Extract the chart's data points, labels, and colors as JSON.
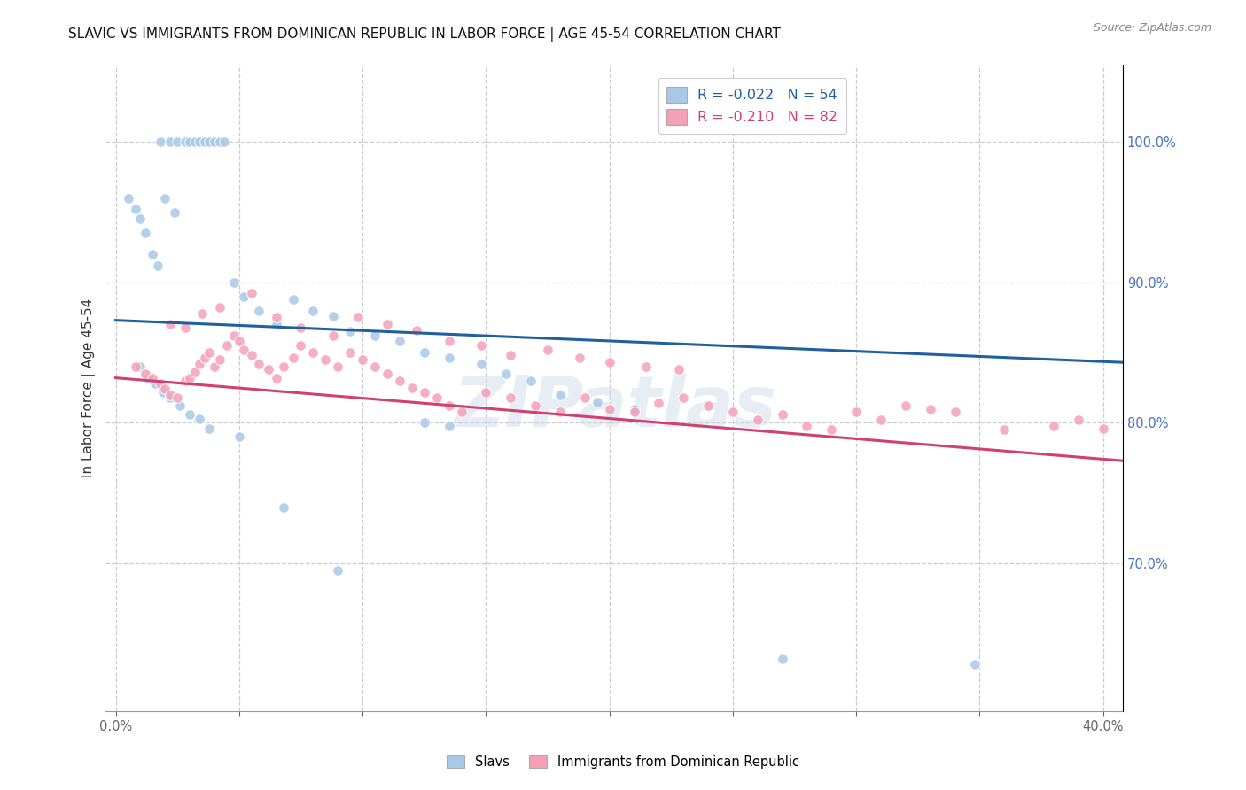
{
  "title": "SLAVIC VS IMMIGRANTS FROM DOMINICAN REPUBLIC IN LABOR FORCE | AGE 45-54 CORRELATION CHART",
  "source": "Source: ZipAtlas.com",
  "ylabel": "In Labor Force | Age 45-54",
  "legend_labels": [
    "Slavs",
    "Immigrants from Dominican Republic"
  ],
  "r_values": [
    -0.022,
    -0.21
  ],
  "n_values": [
    54,
    82
  ],
  "blue_color": "#a8c8e8",
  "pink_color": "#f4a0b8",
  "blue_line_color": "#2060a0",
  "pink_line_color": "#d04070",
  "xlim": [
    -0.004,
    0.408
  ],
  "ylim": [
    0.595,
    1.055
  ],
  "y_ticks_right": [
    0.7,
    0.8,
    0.9,
    1.0
  ],
  "y_tick_labels_right": [
    "70.0%",
    "80.0%",
    "90.0%",
    "100.0%"
  ],
  "x_tick_vals": [
    0.0,
    0.05,
    0.1,
    0.15,
    0.2,
    0.25,
    0.3,
    0.35,
    0.4
  ],
  "x_tick_labels": [
    "0.0%",
    "",
    "",
    "",
    "",
    "",
    "",
    "",
    "40.0%"
  ],
  "watermark": "ZIPatlas",
  "blue_trend": [
    0.873,
    0.843
  ],
  "pink_trend": [
    0.832,
    0.773
  ],
  "blue_x": [
    0.018,
    0.022,
    0.025,
    0.028,
    0.03,
    0.032,
    0.034,
    0.036,
    0.038,
    0.04,
    0.042,
    0.044,
    0.005,
    0.008,
    0.01,
    0.012,
    0.015,
    0.017,
    0.02,
    0.024,
    0.048,
    0.052,
    0.058,
    0.065,
    0.072,
    0.08,
    0.088,
    0.095,
    0.105,
    0.115,
    0.125,
    0.135,
    0.148,
    0.158,
    0.168,
    0.18,
    0.195,
    0.21,
    0.125,
    0.135,
    0.01,
    0.013,
    0.016,
    0.019,
    0.022,
    0.026,
    0.03,
    0.034,
    0.038,
    0.05,
    0.068,
    0.09,
    0.27,
    0.348
  ],
  "blue_y": [
    1.0,
    1.0,
    1.0,
    1.0,
    1.0,
    1.0,
    1.0,
    1.0,
    1.0,
    1.0,
    1.0,
    1.0,
    0.96,
    0.952,
    0.945,
    0.935,
    0.92,
    0.912,
    0.96,
    0.95,
    0.9,
    0.89,
    0.88,
    0.87,
    0.888,
    0.88,
    0.876,
    0.865,
    0.862,
    0.858,
    0.85,
    0.846,
    0.842,
    0.835,
    0.83,
    0.82,
    0.815,
    0.81,
    0.8,
    0.798,
    0.84,
    0.832,
    0.828,
    0.822,
    0.818,
    0.812,
    0.806,
    0.803,
    0.796,
    0.79,
    0.74,
    0.695,
    0.632,
    0.628
  ],
  "pink_x": [
    0.008,
    0.012,
    0.015,
    0.018,
    0.02,
    0.022,
    0.025,
    0.028,
    0.03,
    0.032,
    0.034,
    0.036,
    0.038,
    0.04,
    0.042,
    0.045,
    0.048,
    0.05,
    0.052,
    0.055,
    0.058,
    0.062,
    0.065,
    0.068,
    0.072,
    0.075,
    0.08,
    0.085,
    0.09,
    0.095,
    0.1,
    0.105,
    0.11,
    0.115,
    0.12,
    0.125,
    0.13,
    0.135,
    0.14,
    0.15,
    0.16,
    0.17,
    0.18,
    0.19,
    0.2,
    0.21,
    0.22,
    0.23,
    0.24,
    0.25,
    0.26,
    0.27,
    0.28,
    0.29,
    0.3,
    0.31,
    0.32,
    0.33,
    0.34,
    0.36,
    0.38,
    0.39,
    0.4,
    0.022,
    0.028,
    0.035,
    0.042,
    0.055,
    0.065,
    0.075,
    0.088,
    0.098,
    0.11,
    0.122,
    0.135,
    0.148,
    0.16,
    0.175,
    0.188,
    0.2,
    0.215,
    0.228
  ],
  "pink_y": [
    0.84,
    0.835,
    0.832,
    0.828,
    0.824,
    0.82,
    0.818,
    0.83,
    0.832,
    0.836,
    0.842,
    0.846,
    0.85,
    0.84,
    0.845,
    0.855,
    0.862,
    0.858,
    0.852,
    0.848,
    0.842,
    0.838,
    0.832,
    0.84,
    0.846,
    0.855,
    0.85,
    0.845,
    0.84,
    0.85,
    0.845,
    0.84,
    0.835,
    0.83,
    0.825,
    0.822,
    0.818,
    0.812,
    0.808,
    0.822,
    0.818,
    0.812,
    0.808,
    0.818,
    0.81,
    0.808,
    0.814,
    0.818,
    0.812,
    0.808,
    0.802,
    0.806,
    0.798,
    0.795,
    0.808,
    0.802,
    0.812,
    0.81,
    0.808,
    0.795,
    0.798,
    0.802,
    0.796,
    0.87,
    0.868,
    0.878,
    0.882,
    0.892,
    0.875,
    0.868,
    0.862,
    0.875,
    0.87,
    0.866,
    0.858,
    0.855,
    0.848,
    0.852,
    0.846,
    0.843,
    0.84,
    0.838
  ]
}
